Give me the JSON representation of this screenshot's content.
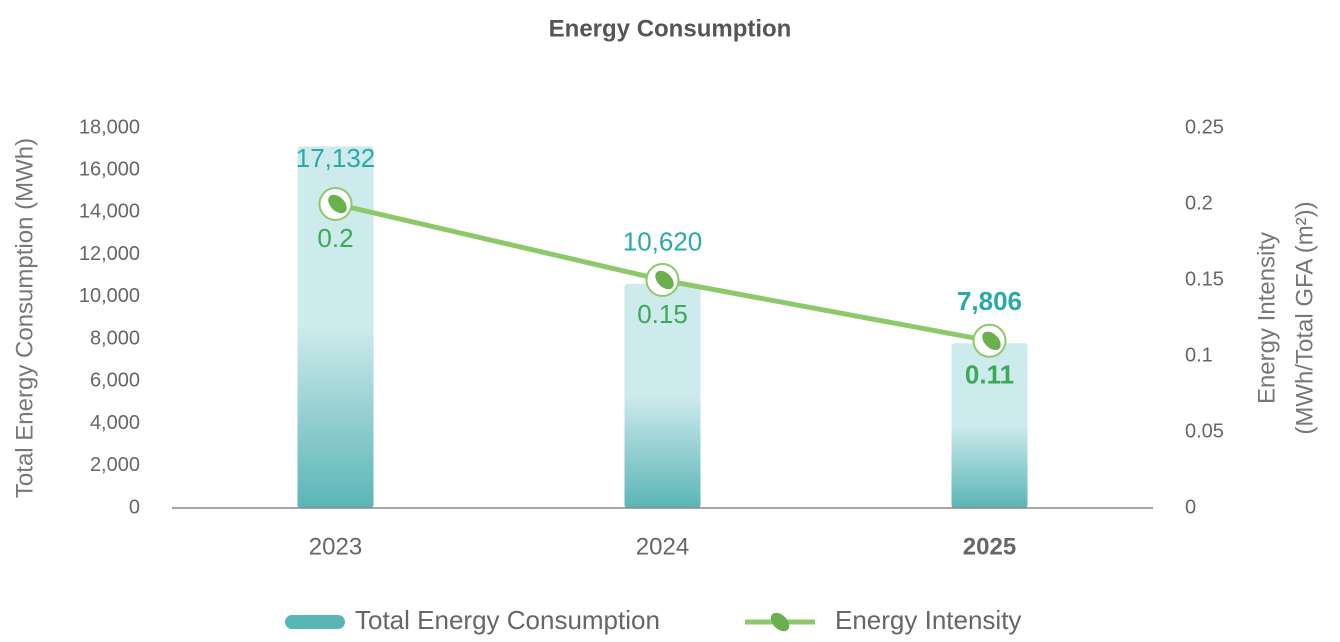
{
  "chart_data": {
    "type": "bar_line",
    "title": "Energy Consumption",
    "categories": [
      "2023",
      "2024",
      "2025"
    ],
    "series": [
      {
        "name": "Total Energy Consumption",
        "type": "bar",
        "color": "#5ab5b6",
        "values": [
          17132,
          10620,
          7806
        ],
        "value_labels": [
          "17,132",
          "10,620",
          "7,806"
        ]
      },
      {
        "name": "Energy Intensity",
        "type": "line",
        "axis": "y2",
        "color": "#8dc96a",
        "values": [
          0.2,
          0.15,
          0.11
        ]
      }
    ],
    "ylabel": "Total Energy Consumption (MWh)",
    "y2label": [
      "Energy Intensity",
      "(MWh/Total GFA (m²))"
    ],
    "ylim": [
      0,
      18000
    ],
    "yticks": [
      0,
      {
        "value": 2000,
        "label": "2,000"
      },
      {
        "value": 4000,
        "label": "4,000"
      },
      {
        "value": 6000,
        "label": "6,000"
      },
      {
        "value": 8000,
        "label": "8,000"
      },
      {
        "value": 10000,
        "label": "10,000"
      },
      {
        "value": 12000,
        "label": "12,000"
      },
      {
        "value": 14000,
        "label": "14,000"
      },
      {
        "value": 16000,
        "label": "16,000"
      },
      {
        "value": 18000,
        "label": "18,000"
      }
    ],
    "y2lim": [
      0,
      0.25
    ],
    "y2ticks": [
      0,
      0.05,
      0.1,
      0.15,
      0.2,
      0.25
    ],
    "legend": "bottom"
  }
}
